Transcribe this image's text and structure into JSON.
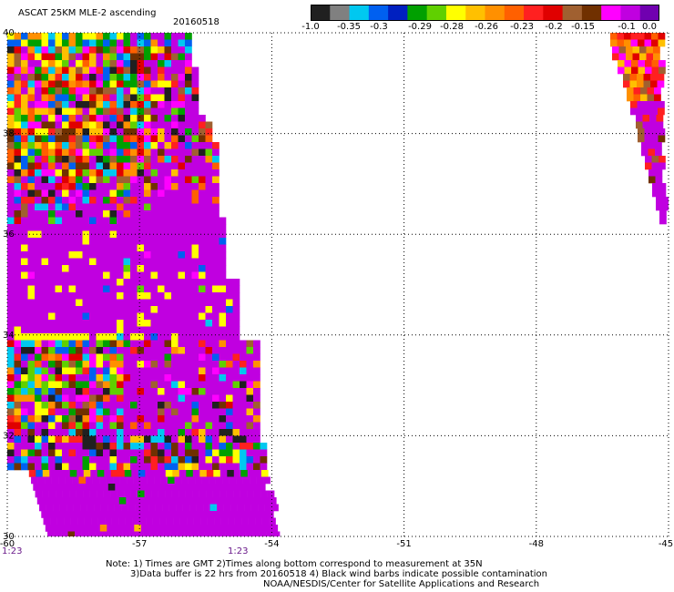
{
  "header": {
    "title": "ASCAT 25KM MLE-2 ascending",
    "date": "20160518"
  },
  "colorbar": {
    "colors": [
      "#202020",
      "#808080",
      "#00c8f0",
      "#0060f0",
      "#0020c0",
      "#00a000",
      "#60d000",
      "#ffff00",
      "#ffc000",
      "#ff9000",
      "#ff6000",
      "#ff2020",
      "#e00000",
      "#a06030",
      "#703000",
      "#ff00ff",
      "#c000e0",
      "#7000b0"
    ],
    "labels": [
      "-1.0",
      "-0.35",
      "-0.3",
      "-0.29",
      "-0.28",
      "-0.26",
      "-0.23",
      "-0.2",
      "-0.15",
      "-0.1",
      "0.0"
    ]
  },
  "map": {
    "lon_range": [
      -60,
      -45
    ],
    "lat_range": [
      30,
      40
    ],
    "lon_ticks": [
      "-60",
      "-57",
      "-54",
      "-51",
      "-48",
      "-45"
    ],
    "lat_ticks": [
      "40",
      "38",
      "36",
      "34",
      "32",
      "30"
    ],
    "grid": true,
    "swath_colors": {
      "magenta": "#c000e0",
      "palette": [
        "#ff2020",
        "#e00000",
        "#ff6000",
        "#ff9000",
        "#ffc000",
        "#ffff00",
        "#a06030",
        "#703000",
        "#202020",
        "#00a000",
        "#0060f0",
        "#00c8f0",
        "#ff00ff",
        "#60d000"
      ]
    }
  },
  "times": [
    "1:23",
    "1:23"
  ],
  "notes": [
    "Note: 1) Times are GMT 2)Times along bottom correspond to measurement at 35N",
    "3)Data buffer is 22 hrs from 20160518 4) Black wind barbs indicate possible contamination",
    "NOAA/NESDIS/Center for Satellite Applications and Research"
  ]
}
